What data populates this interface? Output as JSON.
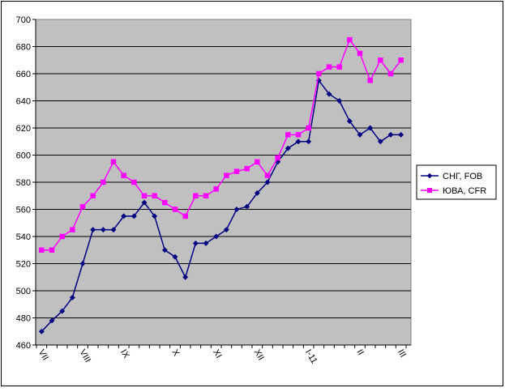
{
  "chart_data": {
    "type": "line",
    "title": "",
    "xlabel": "",
    "ylabel": "",
    "ylim": [
      460,
      700
    ],
    "yticks": [
      460,
      480,
      500,
      520,
      540,
      560,
      580,
      600,
      620,
      640,
      660,
      680,
      700
    ],
    "grid": true,
    "legend_position": "right",
    "month_labels": [
      {
        "label": "VII",
        "index": 0
      },
      {
        "label": "VIII",
        "index": 4
      },
      {
        "label": "IX",
        "index": 8
      },
      {
        "label": "X",
        "index": 13
      },
      {
        "label": "XI",
        "index": 17
      },
      {
        "label": "XII",
        "index": 21
      },
      {
        "label": "I-11",
        "index": 26
      },
      {
        "label": "II",
        "index": 31
      },
      {
        "label": "III",
        "index": 35
      }
    ],
    "point_count": 36,
    "series": [
      {
        "name": "СНГ, FOB",
        "color": "#000080",
        "marker": "diamond",
        "values": [
          470,
          478,
          485,
          495,
          520,
          545,
          545,
          545,
          555,
          555,
          565,
          555,
          530,
          525,
          510,
          535,
          535,
          540,
          545,
          560,
          562,
          572,
          580,
          595,
          605,
          610,
          610,
          655,
          645,
          640,
          625,
          615,
          620,
          610,
          615,
          615
        ]
      },
      {
        "name": "ЮВА, CFR",
        "color": "#ff00ff",
        "marker": "square",
        "values": [
          530,
          530,
          540,
          545,
          562,
          570,
          580,
          595,
          585,
          580,
          570,
          570,
          565,
          560,
          555,
          570,
          570,
          575,
          585,
          588,
          590,
          595,
          585,
          598,
          615,
          615,
          620,
          660,
          665,
          665,
          685,
          675,
          655,
          670,
          660,
          670
        ]
      }
    ]
  }
}
